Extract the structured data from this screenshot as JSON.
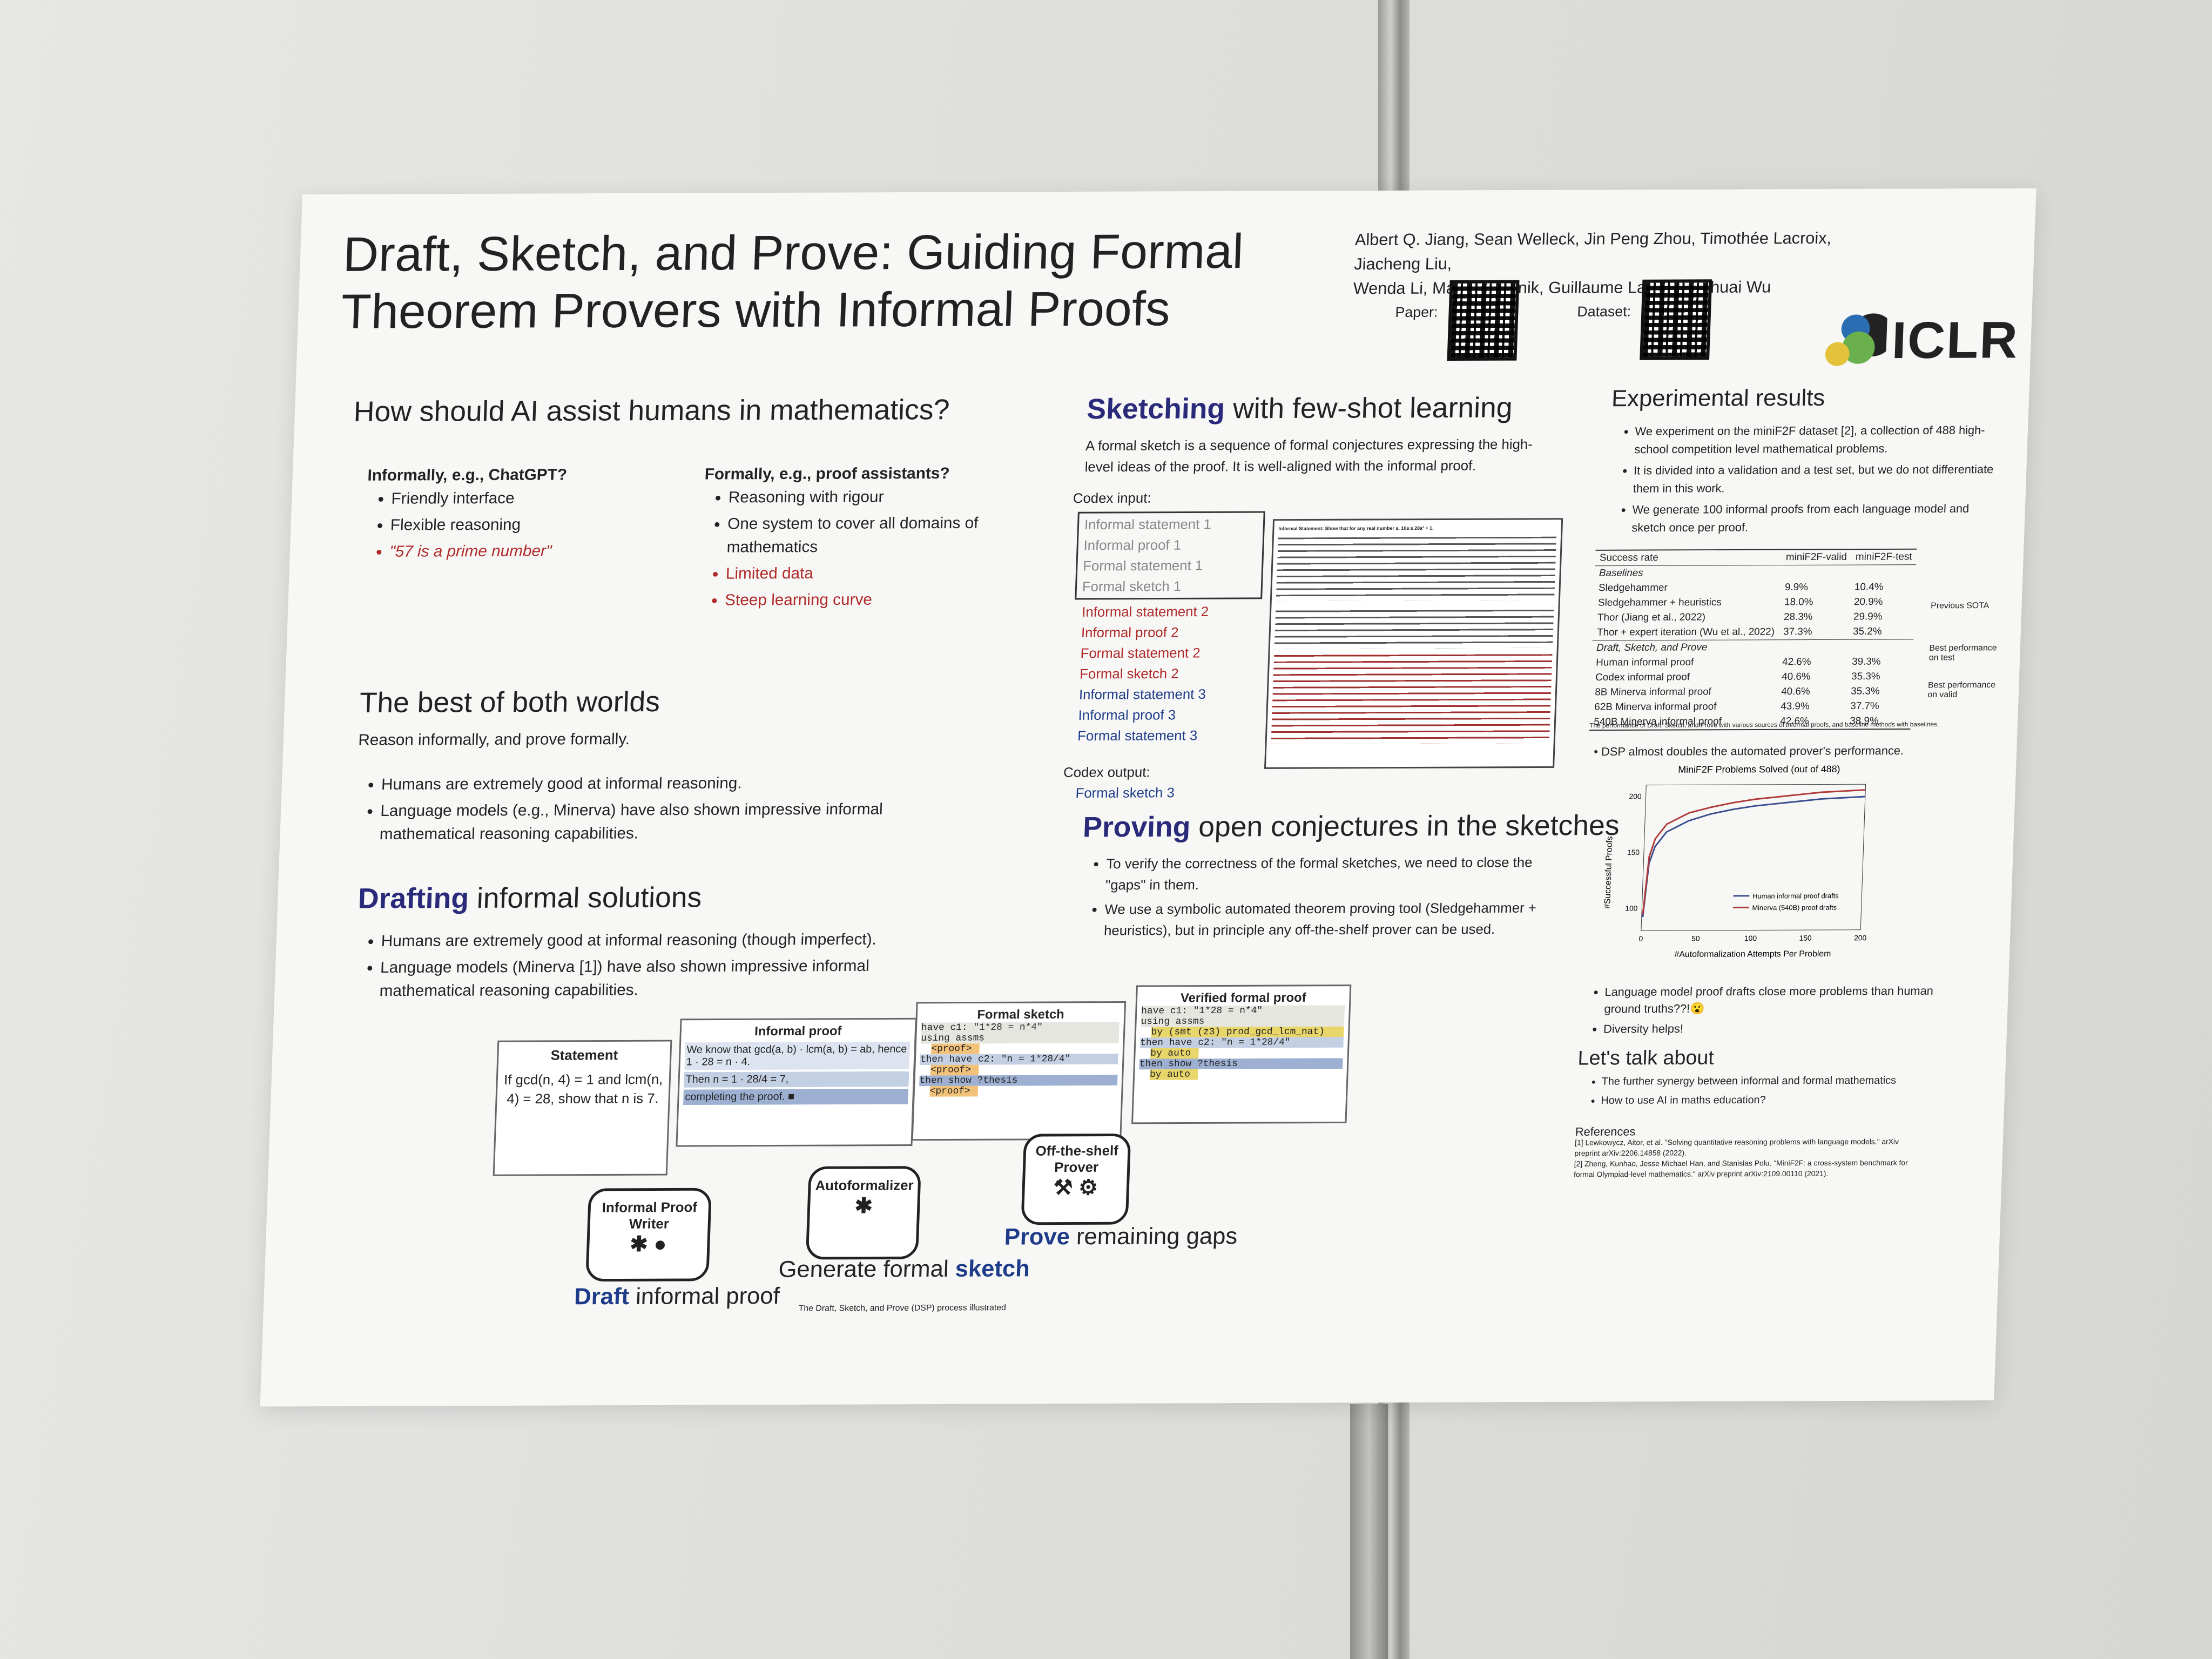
{
  "poster": {
    "title_line1": "Draft, Sketch, and Prove: Guiding Formal",
    "title_line2": "Theorem Provers with Informal Proofs",
    "authors_line1": "Albert Q. Jiang, Sean Welleck, Jin Peng Zhou, Timothée Lacroix, Jiacheng Liu,",
    "authors_line2": "Wenda Li, Mateja Jamnik, Guillaume Lample, Yuhuai Wu",
    "paper_label": "Paper:",
    "dataset_label": "Dataset:",
    "venue": "ICLR"
  },
  "assist": {
    "heading": "How should AI assist humans in mathematics?",
    "informal_title": "Informally, e.g., ChatGPT?",
    "informal_items": [
      "Friendly interface",
      "Flexible reasoning",
      "\"57 is a prime number\""
    ],
    "formal_title": "Formally, e.g., proof assistants?",
    "formal_items": [
      "Reasoning with rigour",
      "One system to cover all domains of mathematics",
      "Limited data",
      "Steep learning curve"
    ]
  },
  "best": {
    "heading": "The best of both worlds",
    "sub": "Reason informally, and prove formally.",
    "items": [
      "Humans are extremely good at informal reasoning.",
      "Language models (e.g., Minerva) have also shown impressive informal mathematical reasoning capabilities."
    ]
  },
  "drafting": {
    "heading_bold": "Drafting",
    "heading_rest": " informal solutions",
    "items": [
      "Humans are extremely good at informal reasoning (though imperfect).",
      "Language models (Minerva [1]) have also shown impressive informal mathematical reasoning capabilities."
    ]
  },
  "sketching": {
    "heading_bold": "Sketching",
    "heading_rest": " with few-shot learning",
    "desc": "A formal sketch is a sequence of formal conjectures expressing the high-level ideas of the proof. It is well-aligned with the informal proof.",
    "input_label": "Codex input:",
    "input_items": [
      "Informal statement 1",
      "Informal proof 1",
      "Formal statement 1",
      "Formal sketch 1",
      "Informal statement 2",
      "Informal proof 2",
      "Formal statement 2",
      "Formal sketch 2",
      "Informal statement 3",
      "Informal proof 3",
      "Formal statement 3"
    ],
    "output_label": "Codex output:",
    "output_items": [
      "Formal sketch 3"
    ],
    "example_header": "Informal Statement: Show that for any real number a, 10a ≤ 28a² + 1."
  },
  "proving": {
    "heading_bold": "Proving",
    "heading_rest": " open conjectures in the sketches",
    "items": [
      "To verify the correctness of the formal sketches, we need to close the \"gaps\" in them.",
      "We use a symbolic automated theorem proving tool (Sledgehammer + heuristics), but in principle any off-the-shelf prover can be used."
    ]
  },
  "pipeline": {
    "statement_title": "Statement",
    "statement_text": "If gcd(n, 4) = 1 and lcm(n, 4) = 28, show that n is 7.",
    "informal_title": "Informal proof",
    "informal_lines": [
      "We know that gcd(a, b) · lcm(a, b) = ab, hence 1 · 28 = n · 4.",
      "Then n = 1 · 28/4 = 7,",
      "completing the proof. ■"
    ],
    "sketch_title": "Formal sketch",
    "sketch_lines": [
      "have c1: \"1*28 = n*4\"",
      "using assms",
      "<proof>",
      "then have c2: \"n = 1*28/4\"",
      "<proof>",
      "then show ?thesis",
      "<proof>"
    ],
    "verified_title": "Verified formal proof",
    "verified_lines": [
      "have c1: \"1*28 = n*4\"",
      "using assms",
      "by (smt (z3) prod_gcd_lcm_nat)",
      "then have c2: \"n = 1*28/4\"",
      "by auto",
      "then show ?thesis",
      "by auto"
    ],
    "writer_label": "Informal Proof Writer",
    "autoformalizer_label": "Autoformalizer",
    "prover_label": "Off-the-shelf Prover",
    "step1_bold": "Draft",
    "step1_rest": " informal proof",
    "step2_rest": "Generate formal ",
    "step2_bold": "sketch",
    "step3_bold": "Prove",
    "step3_rest": " remaining gaps",
    "caption": "The Draft, Sketch, and Prove (DSP) process illustrated"
  },
  "results": {
    "heading": "Experimental results",
    "items": [
      "We experiment on the miniF2F dataset [2], a collection of 488 high-school competition level mathematical problems.",
      "It is divided into a validation and a test set, but we do not differentiate them in this work.",
      "We generate 100 informal proofs from each language model and sketch once per proof."
    ],
    "table_head": [
      "Success rate",
      "miniF2F-valid",
      "miniF2F-test"
    ],
    "baselines_label": "Baselines",
    "baselines": [
      [
        "Sledgehammer",
        "9.9%",
        "10.4%"
      ],
      [
        "Sledgehammer + heuristics",
        "18.0%",
        "20.9%"
      ],
      [
        "Thor (Jiang et al., 2022)",
        "28.3%",
        "29.9%"
      ],
      [
        "Thor + expert iteration (Wu et al., 2022)",
        "37.3%",
        "35.2%"
      ]
    ],
    "dsp_label": "Draft, Sketch, and Prove",
    "dsp": [
      [
        "Human informal proof",
        "42.6%",
        "39.3%"
      ],
      [
        "Codex informal proof",
        "40.6%",
        "35.3%"
      ],
      [
        "8B Minerva informal proof",
        "40.6%",
        "35.3%"
      ],
      [
        "62B Minerva informal proof",
        "43.9%",
        "37.7%"
      ],
      [
        "540B Minerva informal proof",
        "42.6%",
        "38.9%"
      ]
    ],
    "note_sota": "Previous SOTA",
    "note_test": "Best performance on test",
    "note_valid": "Best performance on valid",
    "table_caption": "The performance of Draft, Sketch, and Prove with various sources of informal proofs, and baseline methods with baselines.",
    "dsp_double": "DSP almost doubles the automated prover's performance.",
    "after_items": [
      "Language model proof drafts close more problems than human ground truths??!😮",
      "Diversity helps!"
    ],
    "talk_heading": "Let's talk about",
    "talk_items": [
      "The further synergy between informal and formal mathematics",
      "How to use AI in maths education?"
    ],
    "refs_heading": "References",
    "refs": [
      "[1] Lewkowycz, Aitor, et al. \"Solving quantitative reasoning problems with language models.\" arXiv preprint arXiv:2206.14858 (2022).",
      "[2] Zheng, Kunhao, Jesse Michael Han, and Stanislas Polu. \"MiniF2F: a cross-system benchmark for formal Olympiad-level mathematics.\" arXiv preprint arXiv:2109.00110 (2021)."
    ]
  },
  "chart_data": {
    "type": "line",
    "title": "MiniF2F Problems Solved (out of 488)",
    "xlabel": "#Autoformalization Attempts Per Problem",
    "ylabel": "#Successful Proofs",
    "xlim": [
      0,
      200
    ],
    "ylim": [
      80,
      210
    ],
    "xticks": [
      0,
      50,
      100,
      150,
      200
    ],
    "yticks": [
      100,
      150,
      200
    ],
    "x": [
      1,
      5,
      10,
      20,
      40,
      60,
      80,
      100,
      120,
      140,
      160,
      180,
      200
    ],
    "series": [
      {
        "name": "Human informal proof drafts",
        "color": "#3b4d8f",
        "values": [
          92,
          140,
          155,
          168,
          178,
          184,
          188,
          191,
          193,
          195,
          197,
          198,
          199
        ]
      },
      {
        "name": "Minerva (540B) proof drafts",
        "color": "#b03a3a",
        "values": [
          95,
          146,
          162,
          175,
          185,
          190,
          194,
          197,
          199,
          201,
          203,
          204,
          205
        ]
      }
    ]
  }
}
